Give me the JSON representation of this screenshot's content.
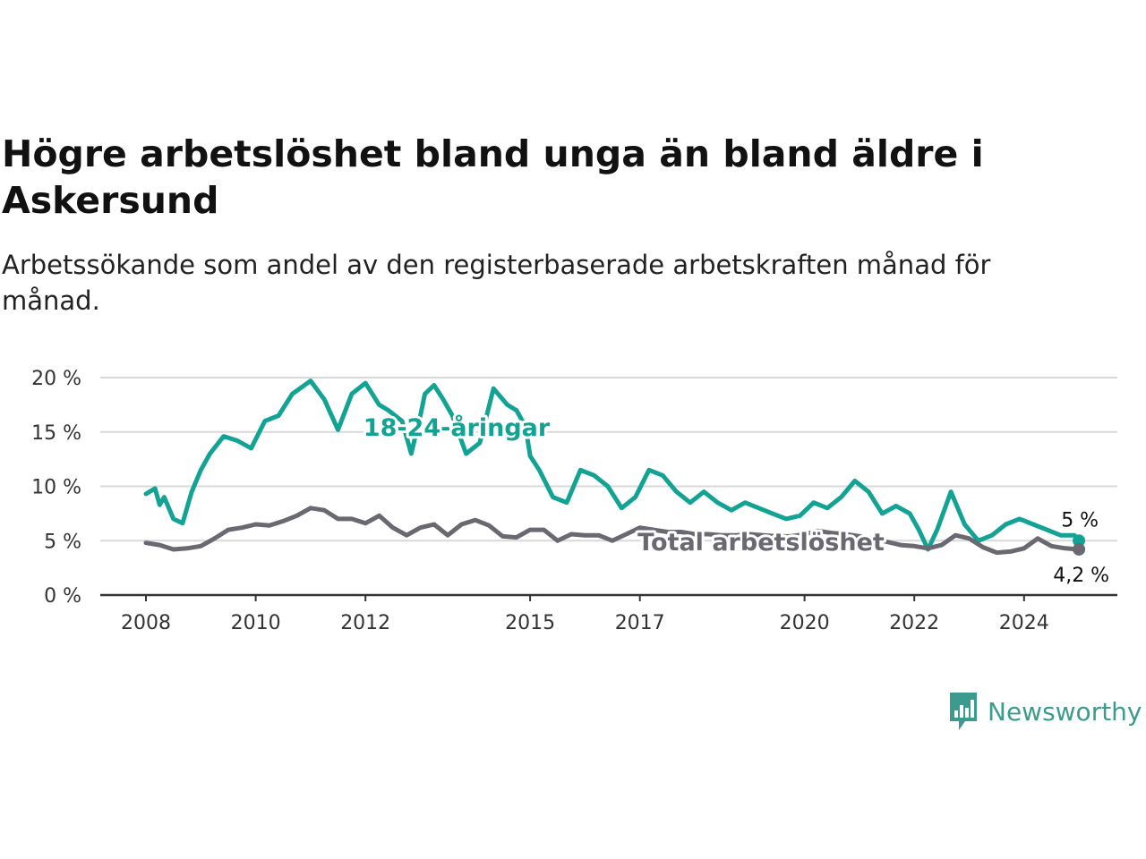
{
  "title": "Högre arbetslöshet bland unga än bland äldre i Askersund",
  "subtitle": "Arbetssökande som andel av den registerbaserade arbetskraften månad för månad.",
  "brand": {
    "name": "Newsworthy",
    "icon": "newsworthy-bar-chart-icon",
    "color": "#3a9b8e"
  },
  "colors": {
    "youth": "#12a394",
    "total": "#6a6870",
    "grid": "#d9d9d9",
    "axis": "#333333"
  },
  "chart_data": {
    "type": "line",
    "x_type": "date",
    "x_ticks": [
      {
        "label": "2008",
        "x": "2008-01"
      },
      {
        "label": "2010",
        "x": "2010-01"
      },
      {
        "label": "2012",
        "x": "2012-01"
      },
      {
        "label": "2015",
        "x": "2015-01"
      },
      {
        "label": "2017",
        "x": "2017-01"
      },
      {
        "label": "2020",
        "x": "2020-01"
      },
      {
        "label": "2022",
        "x": "2022-01"
      },
      {
        "label": "2024",
        "x": "2024-01"
      }
    ],
    "y_ticks": [
      {
        "label": "0 %",
        "value": 0
      },
      {
        "label": "5 %",
        "value": 5
      },
      {
        "label": "10 %",
        "value": 10
      },
      {
        "label": "15 %",
        "value": 15
      },
      {
        "label": "20 %",
        "value": 20
      }
    ],
    "xlim": [
      "2008-01",
      "2025-12"
    ],
    "ylim": [
      0,
      20
    ],
    "grid": true,
    "series": [
      {
        "name": "18-24-åringar",
        "end_label": "5 %",
        "points": [
          [
            "2008-01",
            9.3
          ],
          [
            "2008-03",
            9.8
          ],
          [
            "2008-04",
            8.3
          ],
          [
            "2008-05",
            9.0
          ],
          [
            "2008-07",
            7.0
          ],
          [
            "2008-09",
            6.6
          ],
          [
            "2008-11",
            9.5
          ],
          [
            "2009-01",
            11.5
          ],
          [
            "2009-03",
            13.0
          ],
          [
            "2009-06",
            14.6
          ],
          [
            "2009-09",
            14.2
          ],
          [
            "2009-12",
            13.5
          ],
          [
            "2010-03",
            16.0
          ],
          [
            "2010-06",
            16.5
          ],
          [
            "2010-09",
            18.5
          ],
          [
            "2011-01",
            19.7
          ],
          [
            "2011-04",
            18.0
          ],
          [
            "2011-07",
            15.2
          ],
          [
            "2011-10",
            18.5
          ],
          [
            "2012-01",
            19.5
          ],
          [
            "2012-04",
            17.5
          ],
          [
            "2012-06",
            17.0
          ],
          [
            "2012-09",
            16.0
          ],
          [
            "2012-11",
            13.0
          ],
          [
            "2013-01",
            16.5
          ],
          [
            "2013-02",
            18.5
          ],
          [
            "2013-04",
            19.3
          ],
          [
            "2013-06",
            18.0
          ],
          [
            "2013-08",
            16.5
          ],
          [
            "2013-11",
            13.0
          ],
          [
            "2014-02",
            14.0
          ],
          [
            "2014-05",
            19.0
          ],
          [
            "2014-08",
            17.5
          ],
          [
            "2014-10",
            17.0
          ],
          [
            "2014-12",
            15.5
          ],
          [
            "2015-01",
            12.8
          ],
          [
            "2015-03",
            11.5
          ],
          [
            "2015-06",
            9.0
          ],
          [
            "2015-09",
            8.5
          ],
          [
            "2015-12",
            11.5
          ],
          [
            "2016-03",
            11.0
          ],
          [
            "2016-06",
            10.0
          ],
          [
            "2016-09",
            8.0
          ],
          [
            "2016-12",
            9.0
          ],
          [
            "2017-03",
            11.5
          ],
          [
            "2017-06",
            11.0
          ],
          [
            "2017-09",
            9.5
          ],
          [
            "2017-12",
            8.5
          ],
          [
            "2018-03",
            9.5
          ],
          [
            "2018-06",
            8.5
          ],
          [
            "2018-09",
            7.8
          ],
          [
            "2018-12",
            8.5
          ],
          [
            "2019-03",
            8.0
          ],
          [
            "2019-06",
            7.5
          ],
          [
            "2019-09",
            7.0
          ],
          [
            "2019-12",
            7.3
          ],
          [
            "2020-03",
            8.5
          ],
          [
            "2020-06",
            8.0
          ],
          [
            "2020-09",
            9.0
          ],
          [
            "2020-12",
            10.5
          ],
          [
            "2021-03",
            9.5
          ],
          [
            "2021-06",
            7.5
          ],
          [
            "2021-09",
            8.2
          ],
          [
            "2021-12",
            7.5
          ],
          [
            "2022-02",
            6.0
          ],
          [
            "2022-04",
            4.2
          ],
          [
            "2022-06",
            6.0
          ],
          [
            "2022-09",
            9.5
          ],
          [
            "2022-12",
            6.5
          ],
          [
            "2023-03",
            5.0
          ],
          [
            "2023-06",
            5.5
          ],
          [
            "2023-09",
            6.5
          ],
          [
            "2023-12",
            7.0
          ],
          [
            "2024-03",
            6.5
          ],
          [
            "2024-06",
            6.0
          ],
          [
            "2024-09",
            5.5
          ],
          [
            "2024-12",
            5.5
          ],
          [
            "2025-01",
            5.0
          ]
        ]
      },
      {
        "name": "Total arbetslöshet",
        "end_label": "4,2 %",
        "points": [
          [
            "2008-01",
            4.8
          ],
          [
            "2008-04",
            4.6
          ],
          [
            "2008-07",
            4.2
          ],
          [
            "2008-10",
            4.3
          ],
          [
            "2009-01",
            4.5
          ],
          [
            "2009-04",
            5.2
          ],
          [
            "2009-07",
            6.0
          ],
          [
            "2009-10",
            6.2
          ],
          [
            "2010-01",
            6.5
          ],
          [
            "2010-04",
            6.4
          ],
          [
            "2010-07",
            6.8
          ],
          [
            "2010-10",
            7.3
          ],
          [
            "2011-01",
            8.0
          ],
          [
            "2011-04",
            7.8
          ],
          [
            "2011-07",
            7.0
          ],
          [
            "2011-10",
            7.0
          ],
          [
            "2012-01",
            6.6
          ],
          [
            "2012-04",
            7.3
          ],
          [
            "2012-07",
            6.2
          ],
          [
            "2012-10",
            5.5
          ],
          [
            "2013-01",
            6.2
          ],
          [
            "2013-04",
            6.5
          ],
          [
            "2013-07",
            5.5
          ],
          [
            "2013-10",
            6.5
          ],
          [
            "2014-01",
            6.9
          ],
          [
            "2014-04",
            6.4
          ],
          [
            "2014-07",
            5.4
          ],
          [
            "2014-10",
            5.3
          ],
          [
            "2015-01",
            6.0
          ],
          [
            "2015-04",
            6.0
          ],
          [
            "2015-07",
            5.0
          ],
          [
            "2015-10",
            5.6
          ],
          [
            "2016-01",
            5.5
          ],
          [
            "2016-04",
            5.5
          ],
          [
            "2016-07",
            5.0
          ],
          [
            "2016-10",
            5.6
          ],
          [
            "2017-01",
            6.2
          ],
          [
            "2017-04",
            6.0
          ],
          [
            "2017-07",
            5.8
          ],
          [
            "2017-10",
            5.8
          ],
          [
            "2018-01",
            5.6
          ],
          [
            "2018-04",
            5.6
          ],
          [
            "2018-07",
            5.5
          ],
          [
            "2018-10",
            5.5
          ],
          [
            "2019-01",
            5.6
          ],
          [
            "2019-04",
            5.5
          ],
          [
            "2019-07",
            5.4
          ],
          [
            "2019-10",
            5.4
          ],
          [
            "2020-01",
            5.6
          ],
          [
            "2020-04",
            5.9
          ],
          [
            "2020-07",
            5.7
          ],
          [
            "2020-10",
            5.6
          ],
          [
            "2021-01",
            5.4
          ],
          [
            "2021-04",
            5.2
          ],
          [
            "2021-07",
            4.9
          ],
          [
            "2021-10",
            4.6
          ],
          [
            "2022-01",
            4.5
          ],
          [
            "2022-04",
            4.3
          ],
          [
            "2022-07",
            4.6
          ],
          [
            "2022-10",
            5.5
          ],
          [
            "2023-01",
            5.2
          ],
          [
            "2023-04",
            4.4
          ],
          [
            "2023-07",
            3.9
          ],
          [
            "2023-10",
            4.0
          ],
          [
            "2024-01",
            4.3
          ],
          [
            "2024-04",
            5.2
          ],
          [
            "2024-07",
            4.5
          ],
          [
            "2024-10",
            4.3
          ],
          [
            "2025-01",
            4.2
          ]
        ]
      }
    ]
  }
}
